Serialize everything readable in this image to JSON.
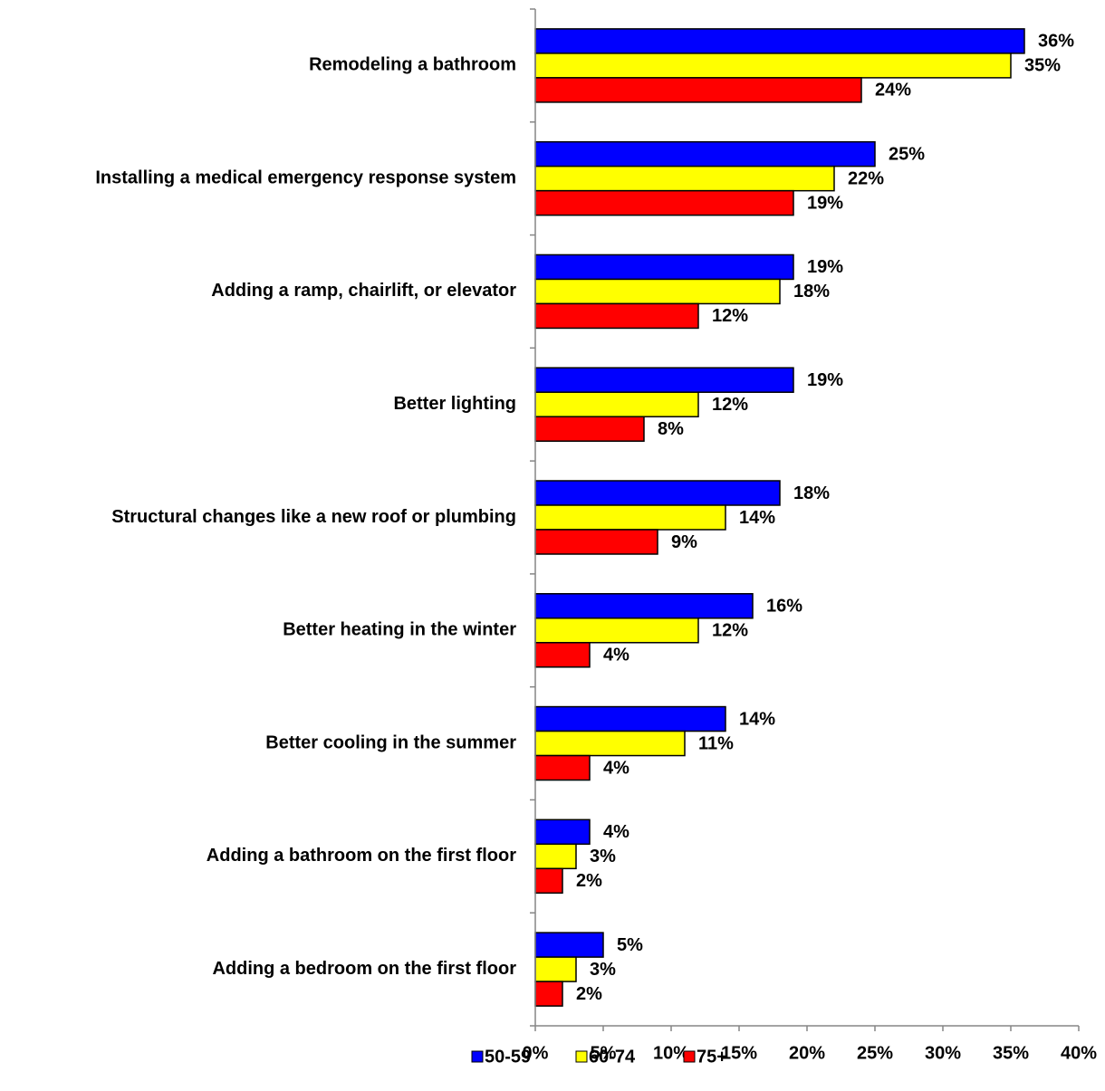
{
  "chart_data": {
    "type": "bar",
    "orientation": "horizontal",
    "categories": [
      "Remodeling a bathroom",
      "Installing a medical emergency response system",
      "Adding a ramp, chairlift, or elevator",
      "Better lighting",
      "Structural changes like a new roof or plumbing",
      "Better heating in the winter",
      "Better cooling in the summer",
      "Adding a bathroom on the first floor",
      "Adding a bedroom on the first floor"
    ],
    "series": [
      {
        "name": "50-59",
        "color": "#0000ff",
        "values": [
          36,
          25,
          19,
          19,
          18,
          16,
          14,
          4,
          5
        ],
        "value_labels": [
          "36%",
          "25%",
          "19%",
          "19%",
          "18%",
          "16%",
          "14%",
          "4%",
          "5%"
        ]
      },
      {
        "name": "60-74",
        "color": "#ffff00",
        "values": [
          35,
          22,
          18,
          12,
          14,
          12,
          11,
          3,
          3
        ],
        "value_labels": [
          "35%",
          "22%",
          "18%",
          "12%",
          "14%",
          "12%",
          "11%",
          "3%",
          "3%"
        ]
      },
      {
        "name": "75+",
        "color": "#ff0000",
        "values": [
          24,
          19,
          12,
          8,
          9,
          4,
          4,
          2,
          2
        ],
        "value_labels": [
          "24%",
          "19%",
          "12%",
          "8%",
          "9%",
          "4%",
          "4%",
          "2%",
          "2%"
        ]
      }
    ],
    "xlim": [
      0,
      40
    ],
    "xticks": [
      {
        "value": 0,
        "label": "0%"
      },
      {
        "value": 5,
        "label": "5%"
      },
      {
        "value": 10,
        "label": "10%"
      },
      {
        "value": 15,
        "label": "15%"
      },
      {
        "value": 20,
        "label": "20%"
      },
      {
        "value": 25,
        "label": "25%"
      },
      {
        "value": 30,
        "label": "30%"
      },
      {
        "value": 35,
        "label": "35%"
      },
      {
        "value": 40,
        "label": "40%"
      }
    ],
    "grid": false,
    "legend": "bottom"
  }
}
